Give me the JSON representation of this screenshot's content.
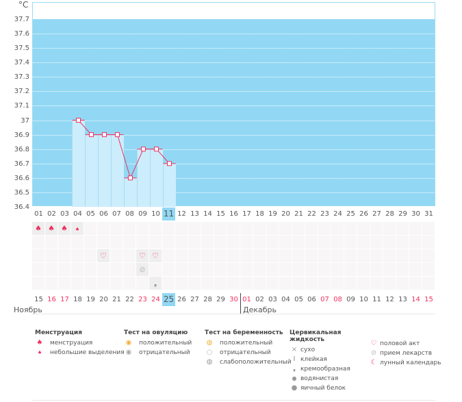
{
  "chart_data": {
    "type": "bar-line",
    "unit": "°C",
    "ylim": [
      36.4,
      37.7
    ],
    "yticks": [
      "37.7",
      "37.6",
      "37.5",
      "37.4",
      "37.3",
      "37.2",
      "37.1",
      "37",
      "36.9",
      "36.8",
      "36.7",
      "36.6",
      "36.5",
      "36.4"
    ],
    "cycle_days": [
      "01",
      "02",
      "03",
      "04",
      "05",
      "06",
      "07",
      "08",
      "09",
      "10",
      "11",
      "12",
      "13",
      "14",
      "15",
      "16",
      "17",
      "18",
      "19",
      "20",
      "21",
      "22",
      "23",
      "24",
      "25",
      "26",
      "27",
      "28",
      "29",
      "30",
      "31"
    ],
    "temperatures": [
      null,
      null,
      null,
      37.0,
      36.9,
      36.9,
      36.9,
      36.6,
      36.8,
      36.8,
      36.7
    ],
    "selected_cycle_day": "11"
  },
  "calendar": {
    "dates": [
      "15",
      "16",
      "17",
      "18",
      "19",
      "20",
      "21",
      "22",
      "23",
      "24",
      "25",
      "26",
      "27",
      "28",
      "29",
      "30",
      "01",
      "02",
      "03",
      "04",
      "05",
      "06",
      "07",
      "08",
      "09",
      "10",
      "11",
      "12",
      "13",
      "14",
      "15"
    ],
    "red_dates": [
      1,
      2,
      8,
      9,
      15,
      16,
      22,
      23,
      29,
      30
    ],
    "selected_date": "25",
    "month1": "Ноябрь",
    "month2": "Декабрь"
  },
  "markers": {
    "menstruation": {
      "icon": "blood-drop-icon",
      "days": [
        0,
        1,
        2
      ],
      "light_days": [
        3
      ]
    },
    "row2": {
      "days": []
    },
    "intercourse": {
      "icon": "heart-icon",
      "days": [
        5,
        8,
        9
      ]
    },
    "medication": {
      "icon": "pill-icon",
      "days": [
        8
      ]
    },
    "cervical_fluid": {
      "icon": "creamy-icon",
      "days": [
        9
      ]
    }
  },
  "legend": {
    "menstruation": {
      "title": "Менструация",
      "items": [
        "менструация",
        "небольшие выделения"
      ]
    },
    "ovulation": {
      "title": "Тест на овуляцию",
      "items": [
        "положительный",
        "отрицательный"
      ]
    },
    "pregnancy": {
      "title": "Тест на беременность",
      "items": [
        "положительный",
        "отрицательный",
        "слабоположительный"
      ]
    },
    "cervical": {
      "title": "Цервикальная жидкость",
      "items": [
        "сухо",
        "клейкая",
        "кремообразная",
        "водянистая",
        "яичный белок"
      ]
    },
    "other": {
      "items": [
        "половой акт",
        "прием лекарств",
        "лунный календарь"
      ]
    }
  },
  "colors": {
    "accent": "#f03060",
    "chart_bg": "#92d8f4",
    "bar": "#ccedfc"
  }
}
